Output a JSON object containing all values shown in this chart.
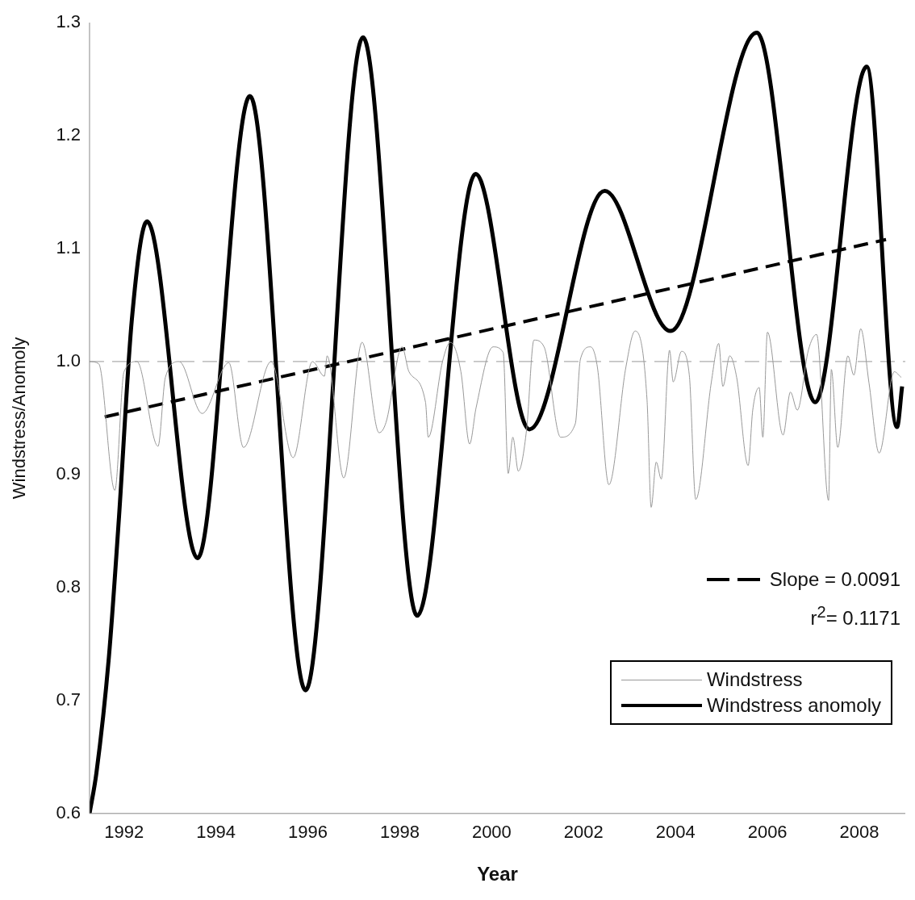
{
  "chart_data": {
    "type": "line",
    "xlabel": "Year",
    "ylabel": "Windstress/Anomoly",
    "xlim": [
      1991.25,
      2009
    ],
    "xticks": [
      1992,
      1994,
      1996,
      1998,
      2000,
      2002,
      2004,
      2006,
      2008
    ],
    "ylim": [
      0.6,
      1.3
    ],
    "yticks": [
      0.6,
      0.7,
      0.8,
      0.9,
      {
        "value": 1,
        "label": "1.0"
      },
      1.1,
      1.2,
      1.3
    ],
    "grid": false,
    "legend": "bottom right",
    "marker": "none",
    "ref_lines": [
      {
        "axis": "y",
        "value": 1.0,
        "color": "#999999",
        "line_style": "dashed"
      }
    ],
    "annotations": [
      "Slope = 0.0091",
      "r$^{2}$= 0.1171"
    ],
    "series": [
      {
        "name": "Windstress",
        "color": "#999999",
        "line_style": "solid",
        "x": [
          1991.25,
          1991.45,
          1991.8,
          1992.0,
          1992.28,
          1992.74,
          1992.9,
          1993.2,
          1993.7,
          1994.28,
          1994.6,
          1995.2,
          1995.68,
          1996.1,
          1996.36,
          1996.42,
          1996.78,
          1997.18,
          1997.55,
          1997.7,
          1998.05,
          1998.2,
          1998.56,
          1998.62,
          1998.93,
          1999.1,
          1999.33,
          1999.52,
          1999.66,
          2000.03,
          2000.25,
          2000.36,
          2000.46,
          2000.58,
          2000.76,
          2000.92,
          2001.14,
          2001.5,
          2001.82,
          2001.93,
          2002.15,
          2002.3,
          2002.55,
          2002.92,
          2003.12,
          2003.38,
          2003.47,
          2003.58,
          2003.69,
          2003.87,
          2003.95,
          2004.13,
          2004.3,
          2004.44,
          2004.78,
          2004.94,
          2005.03,
          2005.18,
          2005.33,
          2005.58,
          2005.68,
          2005.82,
          2005.9,
          2006.0,
          2006.34,
          2006.5,
          2006.65,
          2006.89,
          2007.07,
          2007.33,
          2007.39,
          2007.53,
          2007.75,
          2007.88,
          2008.03,
          2008.21,
          2008.43,
          2008.76,
          2008.91
        ],
        "values": [
          1.0,
          0.998,
          0.886,
          0.991,
          1.0,
          0.925,
          0.986,
          1.0,
          0.954,
          0.999,
          0.924,
          1.0,
          0.915,
          1.0,
          0.987,
          1.005,
          0.897,
          1.017,
          0.937,
          0.946,
          1.013,
          0.991,
          0.964,
          0.933,
          1.0,
          1.017,
          0.991,
          0.927,
          0.959,
          1.013,
          1.008,
          0.901,
          0.933,
          0.903,
          0.94,
          1.019,
          1.013,
          0.933,
          0.945,
          1.002,
          1.013,
          0.995,
          0.891,
          0.995,
          1.027,
          0.966,
          0.871,
          0.911,
          0.896,
          1.01,
          0.982,
          1.009,
          0.988,
          0.878,
          0.982,
          1.016,
          0.978,
          1.005,
          0.986,
          0.908,
          0.957,
          0.977,
          0.933,
          1.026,
          0.935,
          0.973,
          0.957,
          1.01,
          1.024,
          0.877,
          0.993,
          0.924,
          1.005,
          0.988,
          1.029,
          0.981,
          0.919,
          0.991,
          0.986
        ]
      },
      {
        "name": "Windstress anomoly",
        "color": "#000000",
        "line_style": "solid",
        "x": [
          1991.25,
          1991.4,
          1991.67,
          1991.89,
          1992.17,
          1992.5,
          1993.6,
          1994.74,
          1995.95,
          1997.2,
          1998.38,
          1999.65,
          2000.82,
          2002.46,
          2003.89,
          2005.77,
          2007.04,
          2008.16,
          2008.82,
          2008.93
        ],
        "values": [
          0.6,
          0.636,
          0.738,
          0.862,
          1.037,
          1.124,
          0.826,
          1.235,
          0.709,
          1.287,
          0.775,
          1.166,
          0.94,
          1.151,
          1.027,
          1.291,
          0.964,
          1.261,
          0.942,
          0.978
        ]
      },
      {
        "color": "#000000",
        "line_style": "dashed",
        "x": [
          1991.58,
          2008.58
        ],
        "values": [
          0.951,
          1.108
        ]
      }
    ]
  }
}
